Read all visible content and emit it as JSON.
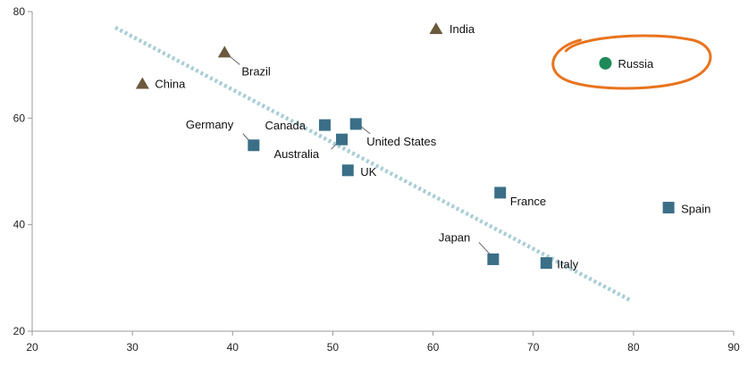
{
  "chart_data": {
    "type": "scatter",
    "title": "",
    "xlabel": "",
    "ylabel": "",
    "xlim": [
      20,
      90
    ],
    "ylim": [
      20,
      80
    ],
    "xticks": [
      20,
      30,
      40,
      50,
      60,
      70,
      80,
      90
    ],
    "yticks": [
      20,
      40,
      60,
      80
    ],
    "grid": false,
    "colors": {
      "square": "#3a6f87",
      "triangle": "#6b5a3e",
      "circle": "#1e8a5a",
      "highlight": "#e8741e",
      "trend": "#a9cdd6",
      "axis": "#999999"
    },
    "trendline": {
      "x": [
        28.3,
        79.8
      ],
      "y": [
        77.0,
        25.7
      ]
    },
    "points": [
      {
        "label": "India",
        "x": 60.3,
        "y": 76.8,
        "marker": "triangle"
      },
      {
        "label": "Brazil",
        "x": 39.2,
        "y": 72.4,
        "marker": "triangle"
      },
      {
        "label": "China",
        "x": 31.0,
        "y": 66.5,
        "marker": "triangle"
      },
      {
        "label": "Russia",
        "x": 77.2,
        "y": 70.3,
        "marker": "circle",
        "highlight": true
      },
      {
        "label": "Germany",
        "x": 42.1,
        "y": 54.9,
        "marker": "square"
      },
      {
        "label": "Canada",
        "x": 49.2,
        "y": 58.7,
        "marker": "square"
      },
      {
        "label": "United States",
        "x": 52.3,
        "y": 58.9,
        "marker": "square"
      },
      {
        "label": "Australia",
        "x": 50.9,
        "y": 56.0,
        "marker": "square"
      },
      {
        "label": "UK",
        "x": 51.5,
        "y": 50.2,
        "marker": "square"
      },
      {
        "label": "France",
        "x": 66.7,
        "y": 46.0,
        "marker": "square"
      },
      {
        "label": "Spain",
        "x": 83.5,
        "y": 43.2,
        "marker": "square"
      },
      {
        "label": "Japan",
        "x": 66.0,
        "y": 33.5,
        "marker": "square"
      },
      {
        "label": "Italy",
        "x": 71.3,
        "y": 32.8,
        "marker": "square"
      }
    ]
  }
}
